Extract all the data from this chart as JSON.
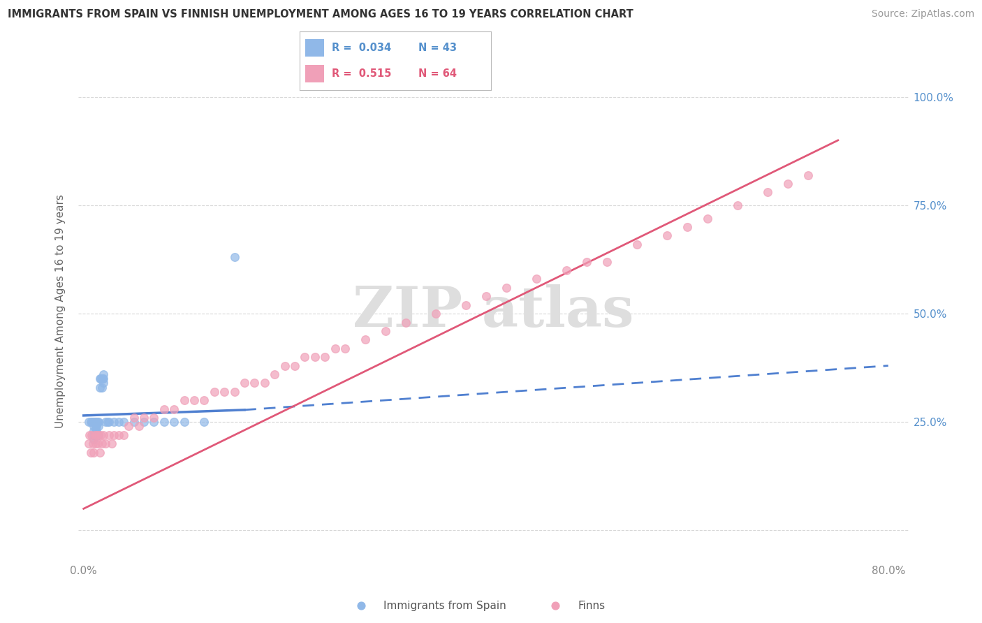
{
  "title": "IMMIGRANTS FROM SPAIN VS FINNISH UNEMPLOYMENT AMONG AGES 16 TO 19 YEARS CORRELATION CHART",
  "source": "Source: ZipAtlas.com",
  "ylabel": "Unemployment Among Ages 16 to 19 years",
  "xlim": [
    -0.005,
    0.82
  ],
  "ylim": [
    -0.07,
    1.08
  ],
  "color_blue": "#90b8e8",
  "color_pink": "#f0a0b8",
  "color_blue_line": "#5080d0",
  "color_pink_line": "#e05878",
  "grid_color": "#d8d8d8",
  "title_color": "#333333",
  "axis_tick_color": "#5590cc",
  "xtick_color": "#888888",
  "blue_scatter_x": [
    0.005,
    0.007,
    0.008,
    0.009,
    0.01,
    0.01,
    0.01,
    0.01,
    0.01,
    0.011,
    0.012,
    0.012,
    0.012,
    0.013,
    0.013,
    0.013,
    0.014,
    0.015,
    0.015,
    0.015,
    0.016,
    0.016,
    0.017,
    0.018,
    0.018,
    0.019,
    0.02,
    0.02,
    0.02,
    0.022,
    0.024,
    0.025,
    0.03,
    0.035,
    0.04,
    0.05,
    0.06,
    0.07,
    0.08,
    0.09,
    0.1,
    0.12,
    0.15
  ],
  "blue_scatter_y": [
    0.25,
    0.25,
    0.25,
    0.25,
    0.25,
    0.24,
    0.23,
    0.22,
    0.21,
    0.25,
    0.25,
    0.24,
    0.23,
    0.25,
    0.24,
    0.23,
    0.25,
    0.25,
    0.24,
    0.22,
    0.35,
    0.33,
    0.35,
    0.33,
    0.35,
    0.35,
    0.36,
    0.35,
    0.34,
    0.25,
    0.25,
    0.25,
    0.25,
    0.25,
    0.25,
    0.25,
    0.25,
    0.25,
    0.25,
    0.25,
    0.25,
    0.25,
    0.63
  ],
  "pink_scatter_x": [
    0.005,
    0.006,
    0.007,
    0.008,
    0.009,
    0.01,
    0.011,
    0.012,
    0.013,
    0.014,
    0.015,
    0.016,
    0.017,
    0.018,
    0.02,
    0.022,
    0.025,
    0.028,
    0.03,
    0.035,
    0.04,
    0.045,
    0.05,
    0.055,
    0.06,
    0.07,
    0.08,
    0.09,
    0.1,
    0.11,
    0.12,
    0.13,
    0.14,
    0.15,
    0.16,
    0.17,
    0.18,
    0.19,
    0.2,
    0.21,
    0.22,
    0.23,
    0.24,
    0.25,
    0.26,
    0.28,
    0.3,
    0.32,
    0.35,
    0.38,
    0.4,
    0.42,
    0.45,
    0.48,
    0.5,
    0.52,
    0.55,
    0.58,
    0.6,
    0.62,
    0.65,
    0.68,
    0.7,
    0.72
  ],
  "pink_scatter_y": [
    0.2,
    0.22,
    0.18,
    0.22,
    0.2,
    0.18,
    0.22,
    0.2,
    0.22,
    0.2,
    0.22,
    0.18,
    0.22,
    0.2,
    0.22,
    0.2,
    0.22,
    0.2,
    0.22,
    0.22,
    0.22,
    0.24,
    0.26,
    0.24,
    0.26,
    0.26,
    0.28,
    0.28,
    0.3,
    0.3,
    0.3,
    0.32,
    0.32,
    0.32,
    0.34,
    0.34,
    0.34,
    0.36,
    0.38,
    0.38,
    0.4,
    0.4,
    0.4,
    0.42,
    0.42,
    0.44,
    0.46,
    0.48,
    0.5,
    0.52,
    0.54,
    0.56,
    0.58,
    0.6,
    0.62,
    0.62,
    0.66,
    0.68,
    0.7,
    0.72,
    0.75,
    0.78,
    0.8,
    0.82
  ],
  "blue_trendline_x": [
    0.0,
    0.8
  ],
  "blue_trendline_y": [
    0.265,
    0.38
  ],
  "pink_trendline_x": [
    0.0,
    0.75
  ],
  "pink_trendline_y": [
    0.05,
    0.9
  ]
}
